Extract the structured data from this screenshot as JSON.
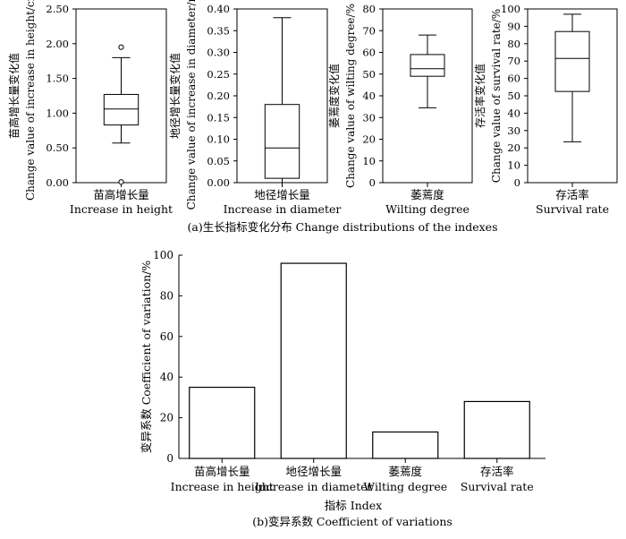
{
  "chart_data": [
    {
      "type": "box",
      "panel": "a",
      "ylabel_cn": "苗高增长量变化值",
      "ylabel_en": "Change value of increase in height/cm",
      "xlabel_cn": "苗高增长量",
      "xlabel_en": "Increase in height",
      "ylim": [
        0,
        2.5
      ],
      "yticks": [
        "0.00",
        "0.50",
        "1.00",
        "1.50",
        "2.00",
        "2.50"
      ],
      "box": {
        "whisker_low": 0.57,
        "q1": 0.83,
        "median": 1.06,
        "q3": 1.27,
        "whisker_high": 1.8
      },
      "outliers": [
        1.95,
        0.01
      ]
    },
    {
      "type": "box",
      "panel": "a",
      "ylabel_cn": "地径增长量变化值",
      "ylabel_en": "Change value of increase in diameter/mm",
      "xlabel_cn": "地径增长量",
      "xlabel_en": "Increase in diameter",
      "ylim": [
        0,
        0.4
      ],
      "yticks": [
        "0.00",
        "0.05",
        "0.10",
        "0.15",
        "0.20",
        "0.25",
        "0.30",
        "0.35",
        "0.40"
      ],
      "box": {
        "whisker_low": 0.0,
        "q1": 0.01,
        "median": 0.08,
        "q3": 0.18,
        "whisker_high": 0.38
      },
      "outliers": []
    },
    {
      "type": "box",
      "panel": "a",
      "ylabel_cn": "萎蔫度变化值",
      "ylabel_en": "Change value of wilting degree/%",
      "xlabel_cn": "萎蔫度",
      "xlabel_en": "Wilting degree",
      "ylim": [
        0,
        80
      ],
      "yticks": [
        "0",
        "10",
        "20",
        "30",
        "40",
        "50",
        "60",
        "70",
        "80"
      ],
      "box": {
        "whisker_low": 34.5,
        "q1": 49,
        "median": 52.5,
        "q3": 59,
        "whisker_high": 68
      },
      "outliers": []
    },
    {
      "type": "box",
      "panel": "a",
      "ylabel_cn": "存活率变化值",
      "ylabel_en": "Change value of survival rate/%",
      "xlabel_cn": "存活率",
      "xlabel_en": "Survival rate",
      "ylim": [
        0,
        100
      ],
      "yticks": [
        "0",
        "10",
        "20",
        "30",
        "40",
        "50",
        "60",
        "70",
        "80",
        "90",
        "100"
      ],
      "box": {
        "whisker_low": 23.5,
        "q1": 52.5,
        "median": 71.5,
        "q3": 87,
        "whisker_high": 97
      },
      "outliers": []
    },
    {
      "type": "bar",
      "panel": "b",
      "categories_cn": [
        "苗高增长量",
        "地径增长量",
        "萎蔫度",
        "存活率"
      ],
      "categories_en": [
        "Increase in height",
        "Increase in diameter",
        "Wilting degree",
        "Survival rate"
      ],
      "values": [
        35,
        96,
        13,
        28
      ],
      "ylim": [
        0,
        100
      ],
      "yticks": [
        "0",
        "20",
        "40",
        "60",
        "80",
        "100"
      ],
      "ylabel": "变异系数  Coefficient of variation/%",
      "xlabel": "指标  Index"
    }
  ],
  "captions": {
    "a": "(a)生长指标变化分布 Change distributions of the indexes",
    "b": "(b)变异系数 Coefficient of variations"
  }
}
